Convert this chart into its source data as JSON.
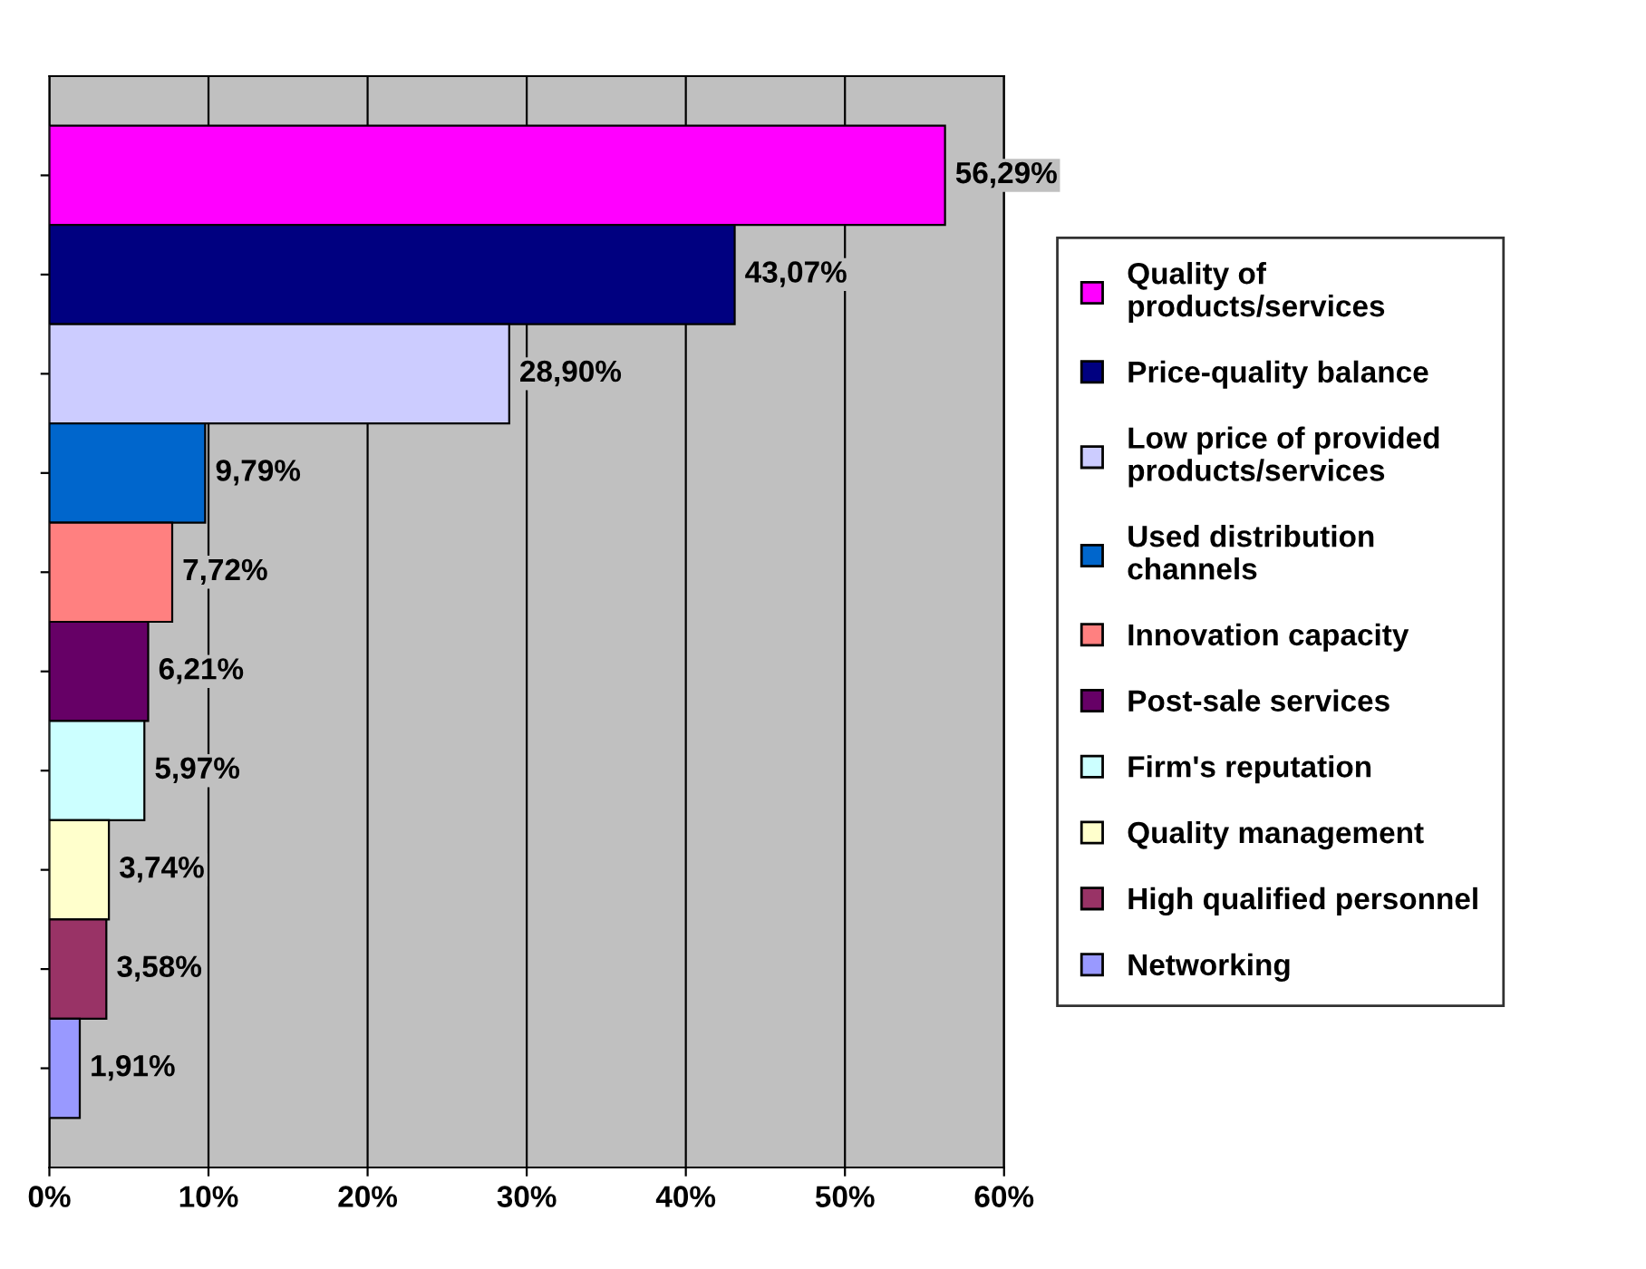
{
  "chart_data": {
    "type": "bar",
    "orientation": "horizontal",
    "categories": [
      null,
      null,
      null,
      null,
      null,
      null,
      null,
      null,
      null,
      null
    ],
    "series": [
      {
        "name": "Quality of\nproducts/services",
        "color": "#ff00ff",
        "values": [
          56.29,
          null,
          null,
          null,
          null,
          null,
          null,
          null,
          null,
          null
        ],
        "value_labels": [
          "56,29%",
          null,
          null,
          null,
          null,
          null,
          null,
          null,
          null,
          null
        ]
      },
      {
        "name": "Price-quality balance",
        "color": "#000080",
        "values": [
          null,
          43.07,
          null,
          null,
          null,
          null,
          null,
          null,
          null,
          null
        ],
        "value_labels": [
          null,
          "43,07%",
          null,
          null,
          null,
          null,
          null,
          null,
          null,
          null
        ]
      },
      {
        "name": "Low price of provided\nproducts/services",
        "color": "#ccccff",
        "values": [
          null,
          null,
          28.9,
          null,
          null,
          null,
          null,
          null,
          null,
          null
        ],
        "value_labels": [
          null,
          null,
          "28,90%",
          null,
          null,
          null,
          null,
          null,
          null,
          null
        ]
      },
      {
        "name": "Used distribution\nchannels",
        "color": "#0066cc",
        "values": [
          null,
          null,
          null,
          9.79,
          null,
          null,
          null,
          null,
          null,
          null
        ],
        "value_labels": [
          null,
          null,
          null,
          "9,79%",
          null,
          null,
          null,
          null,
          null,
          null
        ]
      },
      {
        "name": "Innovation capacity",
        "color": "#ff8080",
        "values": [
          null,
          null,
          null,
          null,
          7.72,
          null,
          null,
          null,
          null,
          null
        ],
        "value_labels": [
          null,
          null,
          null,
          null,
          "7,72%",
          null,
          null,
          null,
          null,
          null
        ]
      },
      {
        "name": "Post-sale services",
        "color": "#660066",
        "values": [
          null,
          null,
          null,
          null,
          null,
          6.21,
          null,
          null,
          null,
          null
        ],
        "value_labels": [
          null,
          null,
          null,
          null,
          null,
          "6,21%",
          null,
          null,
          null,
          null
        ]
      },
      {
        "name": "Firm's reputation",
        "color": "#ccffff",
        "values": [
          null,
          null,
          null,
          null,
          null,
          null,
          5.97,
          null,
          null,
          null
        ],
        "value_labels": [
          null,
          null,
          null,
          null,
          null,
          null,
          "5,97%",
          null,
          null,
          null
        ]
      },
      {
        "name": "Quality management",
        "color": "#ffffcc",
        "values": [
          null,
          null,
          null,
          null,
          null,
          null,
          null,
          3.74,
          null,
          null
        ],
        "value_labels": [
          null,
          null,
          null,
          null,
          null,
          null,
          null,
          "3,74%",
          null,
          null
        ]
      },
      {
        "name": "High qualified personnel",
        "color": "#993366",
        "values": [
          null,
          null,
          null,
          null,
          null,
          null,
          null,
          null,
          3.58,
          null
        ],
        "value_labels": [
          null,
          null,
          null,
          null,
          null,
          null,
          null,
          null,
          "3,58%",
          null
        ]
      },
      {
        "name": "Networking",
        "color": "#9999ff",
        "values": [
          null,
          null,
          null,
          null,
          null,
          null,
          null,
          null,
          null,
          1.91
        ],
        "value_labels": [
          null,
          null,
          null,
          null,
          null,
          null,
          null,
          null,
          null,
          "1,91%"
        ]
      }
    ],
    "xlim": [
      0,
      60
    ],
    "xticks": [
      {
        "value": 0,
        "label": "0%"
      },
      {
        "value": 10,
        "label": "10%"
      },
      {
        "value": 20,
        "label": "20%"
      },
      {
        "value": 30,
        "label": "30%"
      },
      {
        "value": 40,
        "label": "40%"
      },
      {
        "value": 50,
        "label": "50%"
      },
      {
        "value": 60,
        "label": "60%"
      }
    ],
    "grid": "x",
    "legend": "right",
    "tick_labels": "x"
  }
}
